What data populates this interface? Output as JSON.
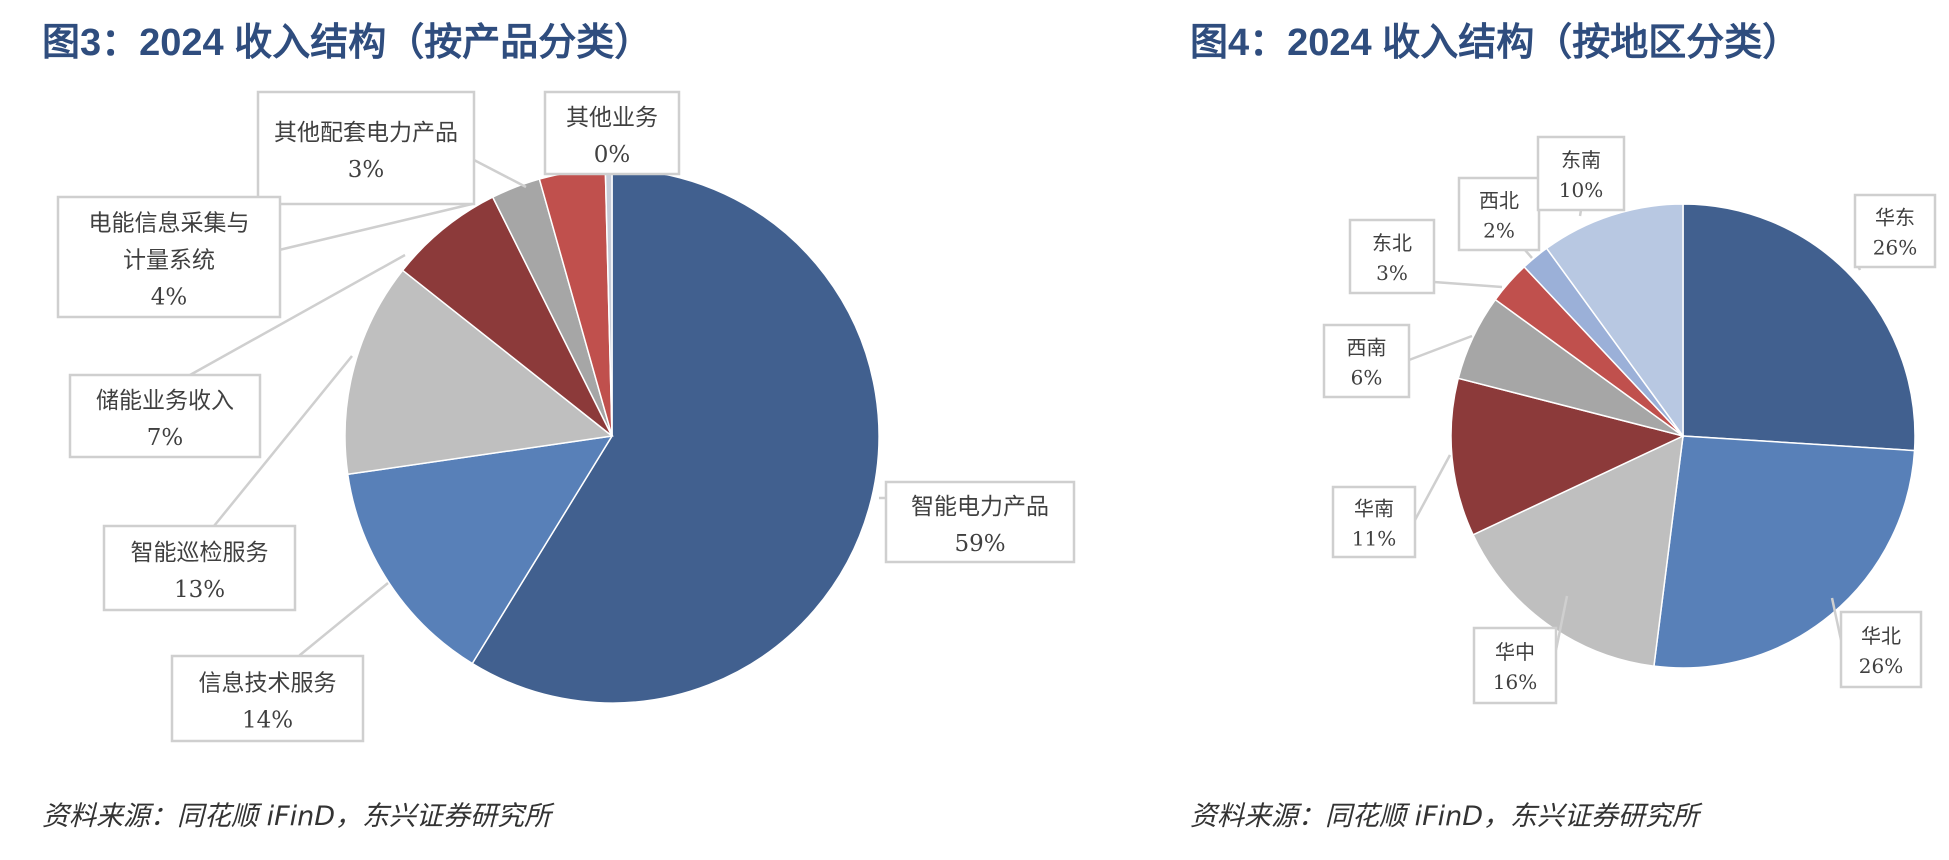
{
  "figures": [
    {
      "title": "图3：2024 收入结构（按产品分类）",
      "source": "资料来源：同花顺 iFinD，东兴证券研究所"
    },
    {
      "title": "图4：2024 收入结构（按地区分类）",
      "source": "资料来源：同花顺 iFinD，东兴证券研究所"
    }
  ],
  "chart_data": [
    {
      "type": "pie",
      "title": "图3：2024 收入结构（按产品分类）",
      "slices": [
        {
          "label": "智能电力产品",
          "value": 59,
          "value_label": "59%",
          "color": "#41608F"
        },
        {
          "label": "信息技术服务",
          "value": 14,
          "value_label": "14%",
          "color": "#5880B8"
        },
        {
          "label": "智能巡检服务",
          "value": 13,
          "value_label": "13%",
          "color": "#BFBFBF"
        },
        {
          "label": "储能业务收入",
          "value": 7,
          "value_label": "7%",
          "color": "#8C3A3A"
        },
        {
          "label": "其他配套电力产品",
          "value": 3,
          "value_label": "3%",
          "color": "#A6A6A6"
        },
        {
          "label": "电能信息采集与计量系统",
          "value": 4,
          "value_label": "4%",
          "color": "#C0504D"
        },
        {
          "label": "其他业务",
          "value": 0.4,
          "value_label": "0%",
          "color": "#C7CCD8"
        }
      ]
    },
    {
      "type": "pie",
      "title": "图4：2024 收入结构（按地区分类）",
      "slices": [
        {
          "label": "华东",
          "value": 26,
          "value_label": "26%",
          "color": "#41608F"
        },
        {
          "label": "华北",
          "value": 26,
          "value_label": "26%",
          "color": "#5880B8"
        },
        {
          "label": "华中",
          "value": 16,
          "value_label": "16%",
          "color": "#BFBFBF"
        },
        {
          "label": "华南",
          "value": 11,
          "value_label": "11%",
          "color": "#8C3A3A"
        },
        {
          "label": "西南",
          "value": 6,
          "value_label": "6%",
          "color": "#A6A6A6"
        },
        {
          "label": "东北",
          "value": 3,
          "value_label": "3%",
          "color": "#C0504D"
        },
        {
          "label": "西北",
          "value": 2,
          "value_label": "2%",
          "color": "#9BB0D8"
        },
        {
          "label": "东南",
          "value": 10,
          "value_label": "10%",
          "color": "#B8C8E2"
        }
      ]
    }
  ]
}
